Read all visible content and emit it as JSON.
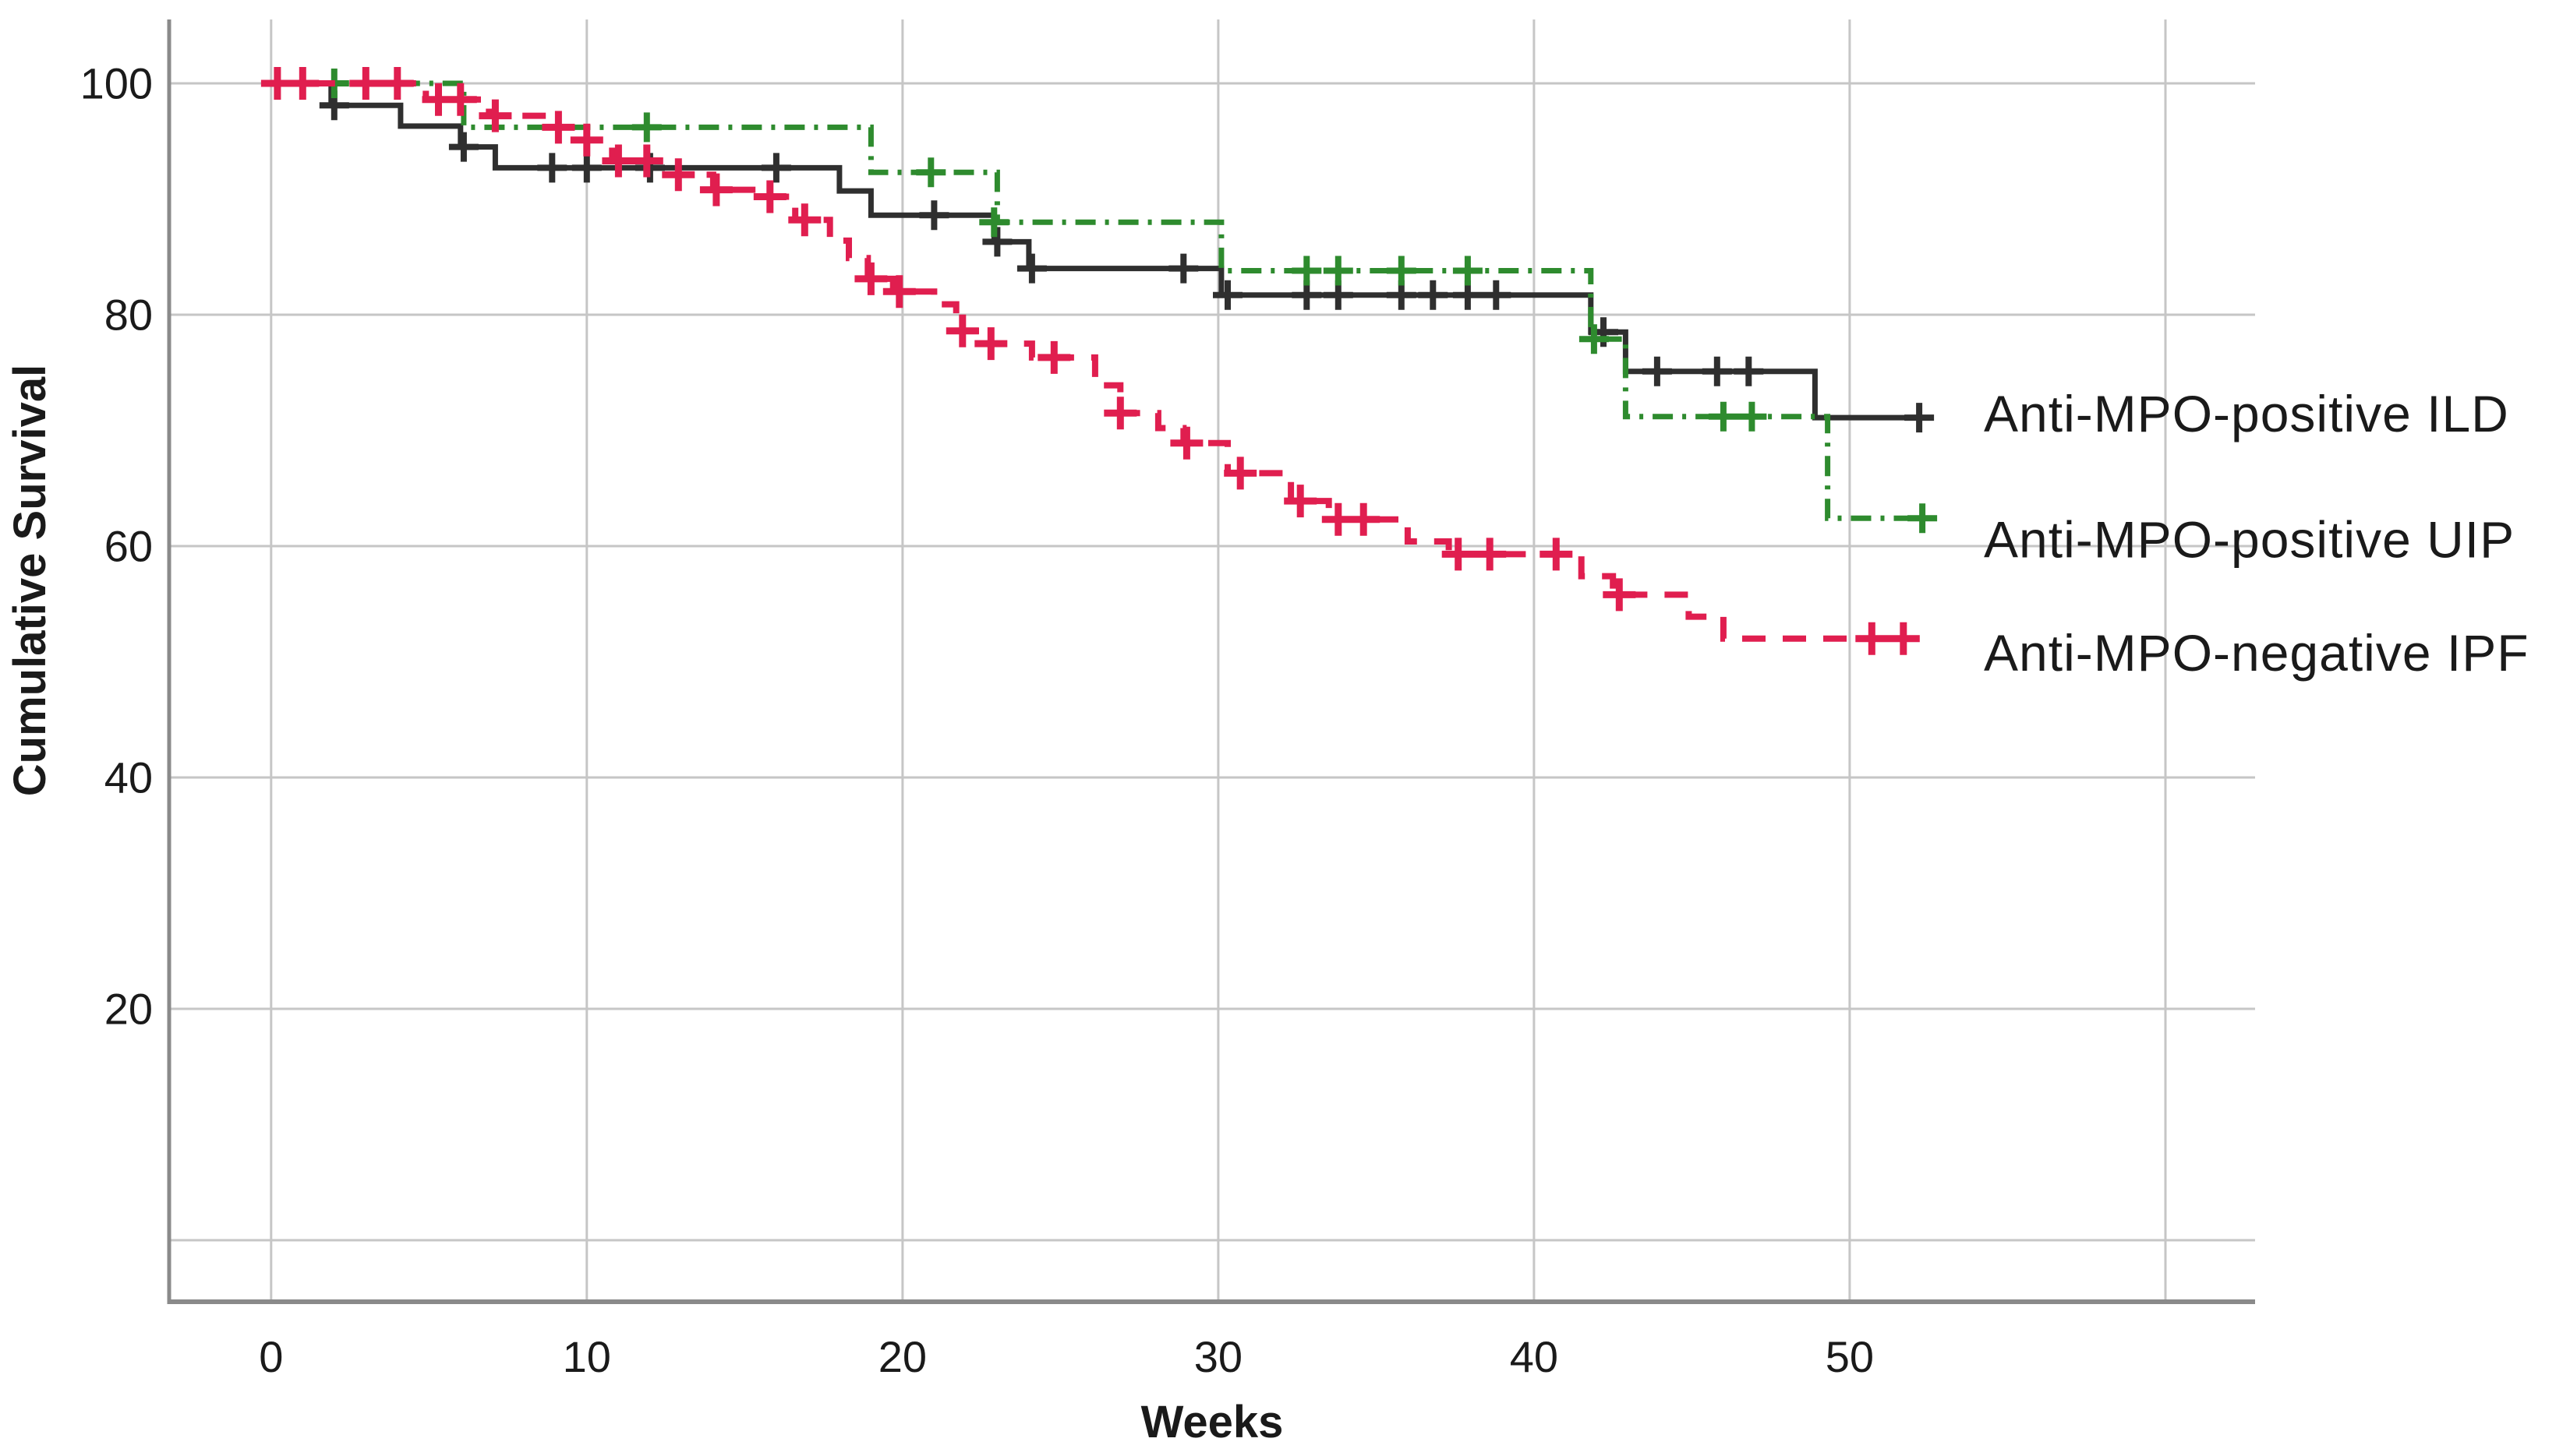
{
  "figure": {
    "background": "#ffffff",
    "description": "Kaplan-Meier cumulative survival curves over weeks for three patient groups"
  },
  "chart_data": {
    "type": "line",
    "subtype": "kaplan-meier-step",
    "title": "",
    "xlabel": "Weeks",
    "ylabel": "Cumulative Survival",
    "xlim": [
      -3.23,
      62.84
    ],
    "ylim": [
      -5.32,
      105.52
    ],
    "x_ticks": [
      0,
      10,
      20,
      30,
      40,
      50
    ],
    "x_gridlines": [
      0,
      10,
      20,
      30,
      40,
      50,
      60
    ],
    "y_ticks": [
      20,
      40,
      60,
      80,
      100
    ],
    "y_gridlines": [
      0,
      20,
      40,
      60,
      80,
      100
    ],
    "grid": true,
    "legend_position": "curve-end-right",
    "colors": {
      "background": "#ffffff",
      "gridline": "#c6c6c6",
      "axis_border": "#8a8a8a",
      "text": "#1a1a1a"
    },
    "series": [
      {
        "name": "Anti-MPO-positive ILD",
        "color": "#2f2f2f",
        "style": "solid",
        "dash": "",
        "line_width": 7,
        "marker": "plus-censor",
        "marker_size": 19,
        "marker_stroke": 8,
        "label_dy": -5,
        "end_week": 52.3,
        "steps": [
          [
            0,
            100
          ],
          [
            1.9,
            98.1
          ],
          [
            4.1,
            96.3
          ],
          [
            6.0,
            94.5
          ],
          [
            7.1,
            92.7
          ],
          [
            18.0,
            90.7
          ],
          [
            19.0,
            88.6
          ],
          [
            22.9,
            86.3
          ],
          [
            24.0,
            84.0
          ],
          [
            30.1,
            81.7
          ],
          [
            41.8,
            78.5
          ],
          [
            42.9,
            75.1
          ],
          [
            48.9,
            71.1
          ]
        ],
        "censors": [
          [
            2.0,
            98.1
          ],
          [
            6.1,
            94.5
          ],
          [
            8.9,
            92.7
          ],
          [
            10.0,
            92.7
          ],
          [
            12.0,
            92.7
          ],
          [
            16.0,
            92.7
          ],
          [
            21.0,
            88.6
          ],
          [
            23.0,
            86.3
          ],
          [
            24.1,
            84.0
          ],
          [
            28.9,
            84.0
          ],
          [
            30.3,
            81.7
          ],
          [
            32.8,
            81.7
          ],
          [
            33.8,
            81.7
          ],
          [
            35.8,
            81.7
          ],
          [
            36.8,
            81.7
          ],
          [
            37.9,
            81.7
          ],
          [
            38.8,
            81.7
          ],
          [
            42.2,
            78.5
          ],
          [
            43.9,
            75.1
          ],
          [
            45.8,
            75.1
          ],
          [
            46.8,
            75.1
          ],
          [
            52.2,
            71.1
          ]
        ]
      },
      {
        "name": "Anti-MPO-positive UIP",
        "color": "#2e8b2e",
        "style": "dash-dot",
        "dash": "26 12 5 12",
        "line_width": 7,
        "marker": "plus-censor",
        "marker_size": 19,
        "marker_stroke": 8,
        "label_dy": 27,
        "end_week": 52.5,
        "steps": [
          [
            0,
            100
          ],
          [
            6.1,
            96.2
          ],
          [
            19.0,
            92.3
          ],
          [
            23.0,
            88.0
          ],
          [
            30.1,
            83.8
          ],
          [
            41.8,
            77.9
          ],
          [
            42.9,
            71.2
          ],
          [
            49.3,
            62.4
          ]
        ],
        "censors": [
          [
            2.0,
            100
          ],
          [
            11.9,
            96.2
          ],
          [
            20.9,
            92.3
          ],
          [
            22.9,
            88.0
          ],
          [
            32.8,
            83.8
          ],
          [
            33.8,
            83.8
          ],
          [
            35.8,
            83.8
          ],
          [
            37.9,
            83.8
          ],
          [
            41.9,
            77.9
          ],
          [
            46.0,
            71.2
          ],
          [
            46.9,
            71.2
          ],
          [
            52.3,
            62.4
          ]
        ]
      },
      {
        "name": "Anti-MPO-negative IPF",
        "color": "#e01e4f",
        "style": "dashed",
        "dash": "30 22",
        "line_width": 8,
        "marker": "plus-censor",
        "marker_size": 21,
        "marker_stroke": 9,
        "label_dy": 18,
        "end_week": 52.2,
        "steps": [
          [
            0,
            100
          ],
          [
            4.9,
            98.6
          ],
          [
            6.9,
            97.2
          ],
          [
            8.8,
            96.2
          ],
          [
            9.8,
            95.1
          ],
          [
            10.8,
            93.3
          ],
          [
            12.6,
            92.1
          ],
          [
            14.0,
            90.8
          ],
          [
            15.5,
            90.2
          ],
          [
            16.6,
            88.2
          ],
          [
            17.7,
            86.4
          ],
          [
            18.3,
            84.9
          ],
          [
            18.9,
            83.1
          ],
          [
            19.7,
            82.0
          ],
          [
            21.0,
            80.9
          ],
          [
            21.7,
            78.6
          ],
          [
            22.6,
            77.5
          ],
          [
            24.1,
            76.3
          ],
          [
            26.1,
            73.9
          ],
          [
            26.9,
            71.5
          ],
          [
            28.1,
            70.2
          ],
          [
            28.9,
            68.9
          ],
          [
            30.3,
            66.3
          ],
          [
            32.3,
            63.9
          ],
          [
            33.5,
            62.3
          ],
          [
            36.0,
            60.4
          ],
          [
            37.3,
            59.3
          ],
          [
            41.5,
            57.4
          ],
          [
            42.5,
            55.8
          ],
          [
            44.9,
            53.9
          ],
          [
            46.0,
            52.0
          ]
        ],
        "censors": [
          [
            0.2,
            100
          ],
          [
            1.0,
            100
          ],
          [
            3.0,
            100
          ],
          [
            4.0,
            100
          ],
          [
            5.3,
            98.6
          ],
          [
            6.0,
            98.6
          ],
          [
            7.1,
            97.2
          ],
          [
            9.1,
            96.2
          ],
          [
            10.0,
            95.1
          ],
          [
            11.0,
            93.3
          ],
          [
            11.9,
            93.3
          ],
          [
            12.9,
            92.1
          ],
          [
            14.1,
            90.8
          ],
          [
            15.8,
            90.2
          ],
          [
            16.9,
            88.2
          ],
          [
            19.0,
            83.1
          ],
          [
            19.9,
            82.0
          ],
          [
            21.9,
            78.6
          ],
          [
            22.8,
            77.5
          ],
          [
            24.8,
            76.3
          ],
          [
            26.9,
            71.5
          ],
          [
            29.0,
            68.9
          ],
          [
            30.7,
            66.3
          ],
          [
            32.6,
            63.9
          ],
          [
            33.8,
            62.3
          ],
          [
            34.6,
            62.3
          ],
          [
            37.6,
            59.3
          ],
          [
            38.6,
            59.3
          ],
          [
            40.7,
            59.3
          ],
          [
            42.7,
            55.8
          ],
          [
            50.7,
            52.0
          ],
          [
            51.7,
            52.0
          ]
        ]
      }
    ]
  }
}
